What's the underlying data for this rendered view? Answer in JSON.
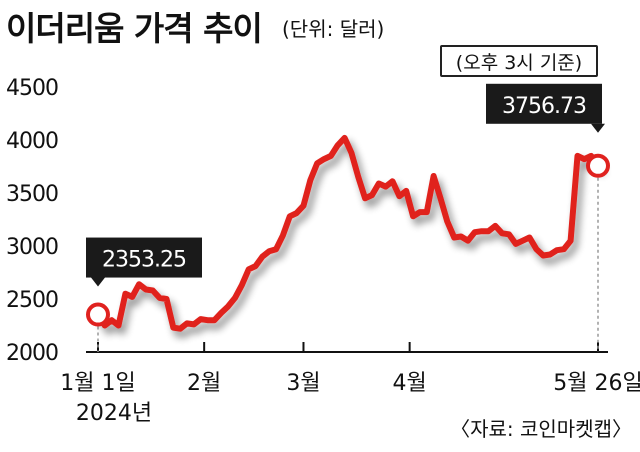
{
  "title": "이더리움 가격 추이",
  "unit": "(단위: 달러)",
  "basis_note": "(오후 3시 기준)",
  "source": "〈자료: 코인마켓캡〉",
  "colors": {
    "line": "#e0221f",
    "label_bg": "#1a1a1a",
    "label_text": "#ffffff",
    "grid": "#999999"
  },
  "chart_data": {
    "type": "line",
    "title": "이더리움 가격 추이",
    "ylim": [
      2000,
      4500
    ],
    "yticks": [
      4500,
      4000,
      3500,
      3000,
      2500,
      2000
    ],
    "ytick_labels": [
      "4500",
      "4000",
      "3500",
      "3000",
      "2500",
      "2000"
    ],
    "xlim": [
      "2024-01-01",
      "2024-05-26"
    ],
    "xtick_labels": [
      {
        "date": "2024-01-01",
        "label": "1월 1일",
        "sub": "2024년"
      },
      {
        "date": "2024-02-01",
        "label": "2월",
        "sub": ""
      },
      {
        "date": "2024-03-01",
        "label": "3월",
        "sub": ""
      },
      {
        "date": "2024-04-01",
        "label": "4월",
        "sub": ""
      },
      {
        "date": "2024-05-26",
        "label": "5월 26일",
        "sub": ""
      }
    ],
    "grid": false,
    "annotations": [
      {
        "date": "2024-01-01",
        "value": 2353.25,
        "label": "2353.25"
      },
      {
        "date": "2024-05-26",
        "value": 3756.73,
        "label": "3756.73"
      }
    ],
    "series": [
      {
        "x": [
          "2024-01-01",
          "2024-01-03",
          "2024-01-05",
          "2024-01-07",
          "2024-01-09",
          "2024-01-11",
          "2024-01-13",
          "2024-01-15",
          "2024-01-17",
          "2024-01-19",
          "2024-01-21",
          "2024-01-23",
          "2024-01-25",
          "2024-01-27",
          "2024-01-29",
          "2024-01-31",
          "2024-02-02",
          "2024-02-04",
          "2024-02-06",
          "2024-02-08",
          "2024-02-10",
          "2024-02-12",
          "2024-02-14",
          "2024-02-16",
          "2024-02-18",
          "2024-02-20",
          "2024-02-22",
          "2024-02-24",
          "2024-02-26",
          "2024-02-28",
          "2024-03-01",
          "2024-03-03",
          "2024-03-05",
          "2024-03-07",
          "2024-03-09",
          "2024-03-11",
          "2024-03-13",
          "2024-03-15",
          "2024-03-17",
          "2024-03-19",
          "2024-03-21",
          "2024-03-23",
          "2024-03-25",
          "2024-03-27",
          "2024-03-29",
          "2024-03-31",
          "2024-04-02",
          "2024-04-04",
          "2024-04-06",
          "2024-04-08",
          "2024-04-10",
          "2024-04-12",
          "2024-04-14",
          "2024-04-16",
          "2024-04-18",
          "2024-04-20",
          "2024-04-22",
          "2024-04-24",
          "2024-04-26",
          "2024-04-28",
          "2024-04-30",
          "2024-05-02",
          "2024-05-04",
          "2024-05-06",
          "2024-05-08",
          "2024-05-10",
          "2024-05-12",
          "2024-05-14",
          "2024-05-16",
          "2024-05-18",
          "2024-05-20",
          "2024-05-22",
          "2024-05-24",
          "2024-05-26"
        ],
        "values": [
          2353.25,
          2250,
          2300,
          2250,
          2550,
          2520,
          2640,
          2590,
          2580,
          2510,
          2500,
          2230,
          2220,
          2270,
          2260,
          2310,
          2300,
          2300,
          2370,
          2430,
          2510,
          2630,
          2780,
          2810,
          2900,
          2950,
          2970,
          3100,
          3280,
          3310,
          3380,
          3620,
          3780,
          3820,
          3850,
          3950,
          4020,
          3880,
          3650,
          3450,
          3480,
          3590,
          3560,
          3610,
          3470,
          3520,
          3280,
          3320,
          3320,
          3660,
          3450,
          3230,
          3080,
          3090,
          3050,
          3130,
          3140,
          3140,
          3190,
          3120,
          3110,
          3020,
          3050,
          3080,
          2970,
          2910,
          2920,
          2960,
          2970,
          3050,
          3850,
          3820,
          3850,
          3756.73
        ]
      }
    ]
  }
}
